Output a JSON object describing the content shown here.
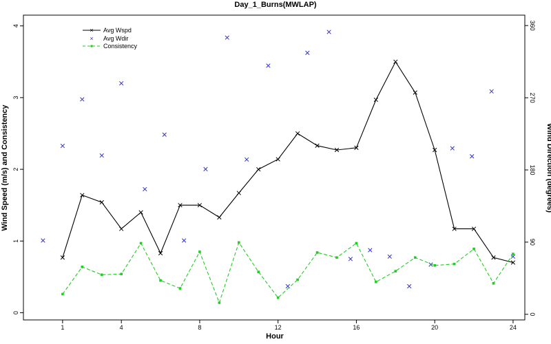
{
  "chart_data": {
    "type": "line",
    "title": "Day_1_Burns(MWLAP)",
    "xlabel": "Hour",
    "ylabel_left": "Wind Speed (m/s) and Consistency",
    "ylabel_right": "Wind Direction (degrees)",
    "xlim": [
      -1,
      24.6
    ],
    "ylim_left": [
      -0.1,
      4.15
    ],
    "ylim_right": [
      -7,
      373
    ],
    "x_ticks": [
      1,
      4,
      8,
      12,
      16,
      20,
      24
    ],
    "y_ticks_left": [
      0,
      1,
      2,
      3,
      4
    ],
    "y_ticks_right": [
      0,
      90,
      180,
      270,
      360
    ],
    "legend_position": "top-left",
    "legend": [
      "Avg Wspd",
      "Avg Wdir",
      "Consistency"
    ],
    "colors": {
      "wspd": "#000000",
      "wdir": "#3333cc",
      "consistency": "#22cc22"
    },
    "series": [
      {
        "name": "Avg Wspd",
        "axis": "left",
        "style": "line-x-markers",
        "x": [
          1,
          2,
          3,
          4,
          5,
          6,
          7,
          8,
          9,
          10,
          11,
          12,
          13,
          14,
          15,
          16,
          17,
          18,
          19,
          20,
          21,
          22,
          23,
          24
        ],
        "values": [
          0.77,
          1.64,
          1.54,
          1.17,
          1.4,
          0.83,
          1.5,
          1.5,
          1.33,
          1.67,
          2.0,
          2.14,
          2.5,
          2.33,
          2.27,
          2.3,
          2.97,
          3.5,
          3.07,
          2.27,
          1.17,
          1.17,
          0.77,
          0.7
        ]
      },
      {
        "name": "Avg Wdir",
        "axis": "right",
        "style": "x-markers",
        "x": [
          0,
          1,
          2,
          3,
          4,
          5.2,
          6.2,
          7.2,
          8.3,
          9.4,
          10.4,
          11.5,
          12.5,
          13.5,
          14.6,
          15.7,
          16.7,
          17.7,
          18.7,
          19.8,
          20.9,
          21.9,
          22.9,
          24
        ],
        "values": [
          92,
          210,
          268,
          198,
          288,
          156,
          224,
          92,
          181,
          345,
          193,
          310,
          35,
          326,
          352,
          69,
          80,
          72,
          35,
          62,
          207,
          197,
          278,
          72
        ]
      },
      {
        "name": "Consistency",
        "axis": "left",
        "style": "dashed-line-square-markers",
        "x": [
          1,
          2,
          3,
          4,
          5,
          6,
          7,
          8,
          9,
          10,
          11,
          12,
          13,
          14,
          15,
          16,
          17,
          18,
          19,
          20,
          21,
          22,
          23,
          24
        ],
        "values": [
          0.26,
          0.64,
          0.53,
          0.54,
          0.97,
          0.45,
          0.34,
          0.85,
          0.14,
          0.98,
          0.57,
          0.21,
          0.46,
          0.84,
          0.77,
          0.97,
          0.43,
          0.58,
          0.77,
          0.66,
          0.68,
          0.89,
          0.41,
          0.82
        ]
      }
    ]
  }
}
